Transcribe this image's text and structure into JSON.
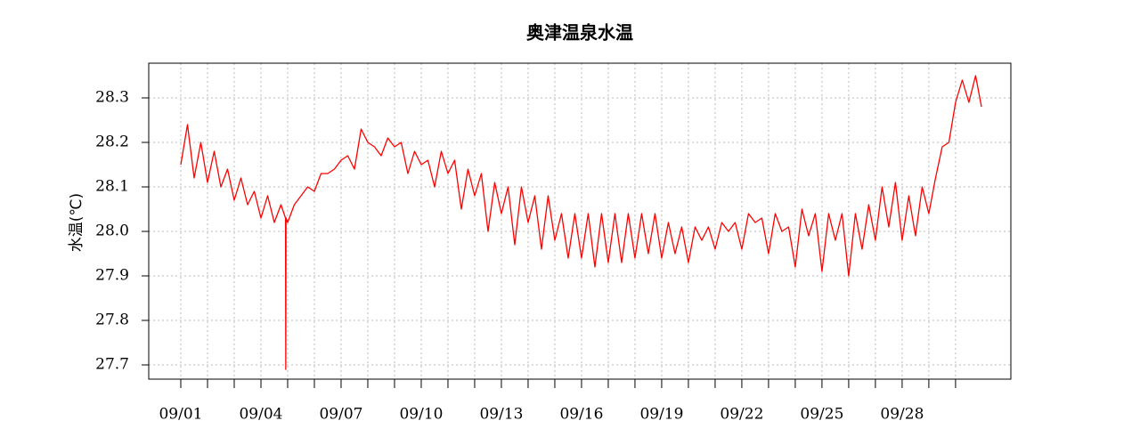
{
  "chart_data": {
    "type": "line",
    "title": "奥津温泉水温",
    "y_label": "水温(℃)",
    "x": [
      1,
      1.25,
      1.5,
      1.75,
      2,
      2.25,
      2.5,
      2.75,
      3,
      3.25,
      3.5,
      3.75,
      4,
      4.25,
      4.5,
      4.75,
      4.92,
      4.93,
      4.94,
      5,
      5.25,
      5.5,
      5.75,
      6,
      6.25,
      6.5,
      6.75,
      7,
      7.25,
      7.5,
      7.75,
      8,
      8.25,
      8.5,
      8.75,
      9,
      9.25,
      9.5,
      9.75,
      10,
      10.25,
      10.5,
      10.75,
      11,
      11.25,
      11.5,
      11.75,
      12,
      12.25,
      12.5,
      12.75,
      13,
      13.25,
      13.5,
      13.75,
      14,
      14.25,
      14.5,
      14.75,
      15,
      15.25,
      15.5,
      15.75,
      16,
      16.25,
      16.5,
      16.75,
      17,
      17.25,
      17.5,
      17.75,
      18,
      18.25,
      18.5,
      18.75,
      19,
      19.25,
      19.5,
      19.75,
      20,
      20.25,
      20.5,
      20.75,
      21,
      21.25,
      21.5,
      21.75,
      22,
      22.25,
      22.5,
      22.75,
      23,
      23.25,
      23.5,
      23.75,
      24,
      24.25,
      24.5,
      24.75,
      25,
      25.25,
      25.5,
      25.75,
      26,
      26.25,
      26.5,
      26.75,
      27,
      27.25,
      27.5,
      27.75,
      28,
      28.25,
      28.5,
      28.75,
      29,
      29.25,
      29.5,
      29.75,
      30,
      30.25,
      30.5,
      30.75,
      30.97
    ],
    "series": [
      {
        "name": "水温",
        "color": "#ff0000",
        "values": [
          28.15,
          28.24,
          28.12,
          28.2,
          28.11,
          28.18,
          28.1,
          28.14,
          28.07,
          28.12,
          28.06,
          28.09,
          28.03,
          28.08,
          28.02,
          28.06,
          28.03,
          27.69,
          28.03,
          28.02,
          28.06,
          28.08,
          28.1,
          28.09,
          28.13,
          28.13,
          28.14,
          28.16,
          28.17,
          28.14,
          28.23,
          28.2,
          28.19,
          28.17,
          28.21,
          28.19,
          28.2,
          28.13,
          28.18,
          28.15,
          28.16,
          28.1,
          28.18,
          28.13,
          28.16,
          28.05,
          28.14,
          28.08,
          28.13,
          28.0,
          28.11,
          28.04,
          28.1,
          27.97,
          28.1,
          28.02,
          28.08,
          27.96,
          28.08,
          27.98,
          28.04,
          27.94,
          28.04,
          27.94,
          28.04,
          27.92,
          28.04,
          27.93,
          28.04,
          27.93,
          28.04,
          27.94,
          28.04,
          27.95,
          28.04,
          27.94,
          28.02,
          27.95,
          28.01,
          27.93,
          28.01,
          27.98,
          28.01,
          27.96,
          28.02,
          28.0,
          28.02,
          27.96,
          28.04,
          28.02,
          28.03,
          27.95,
          28.04,
          28.0,
          28.01,
          27.92,
          28.05,
          27.99,
          28.04,
          27.91,
          28.04,
          27.98,
          28.04,
          27.9,
          28.04,
          27.96,
          28.06,
          27.98,
          28.1,
          28.01,
          28.11,
          27.98,
          28.08,
          27.99,
          28.1,
          28.04,
          28.12,
          28.19,
          28.2,
          28.29,
          28.34,
          28.29,
          28.35,
          28.28
        ]
      }
    ],
    "xlim": [
      -0.2,
      32.07
    ],
    "xticks": [
      {
        "value": 1,
        "label": "09/01"
      },
      {
        "value": 4,
        "label": "09/04"
      },
      {
        "value": 7,
        "label": "09/07"
      },
      {
        "value": 10,
        "label": "09/10"
      },
      {
        "value": 13,
        "label": "09/13"
      },
      {
        "value": 16,
        "label": "09/16"
      },
      {
        "value": 19,
        "label": "09/19"
      },
      {
        "value": 22,
        "label": "09/22"
      },
      {
        "value": 25,
        "label": "09/25"
      },
      {
        "value": 28,
        "label": "09/28"
      }
    ],
    "xminor": [
      2,
      3,
      5,
      6,
      8,
      9,
      11,
      12,
      14,
      15,
      17,
      18,
      20,
      21,
      23,
      24,
      26,
      27,
      29,
      30
    ],
    "ylim": [
      27.668,
      28.378
    ],
    "yticks": [
      {
        "value": 27.7,
        "label": "27.7"
      },
      {
        "value": 27.8,
        "label": "27.8"
      },
      {
        "value": 27.9,
        "label": "27.9"
      },
      {
        "value": 28.0,
        "label": "28.0"
      },
      {
        "value": 28.1,
        "label": "28.1"
      },
      {
        "value": 28.2,
        "label": "28.2"
      },
      {
        "value": 28.3,
        "label": "28.3"
      }
    ],
    "grid": true
  }
}
